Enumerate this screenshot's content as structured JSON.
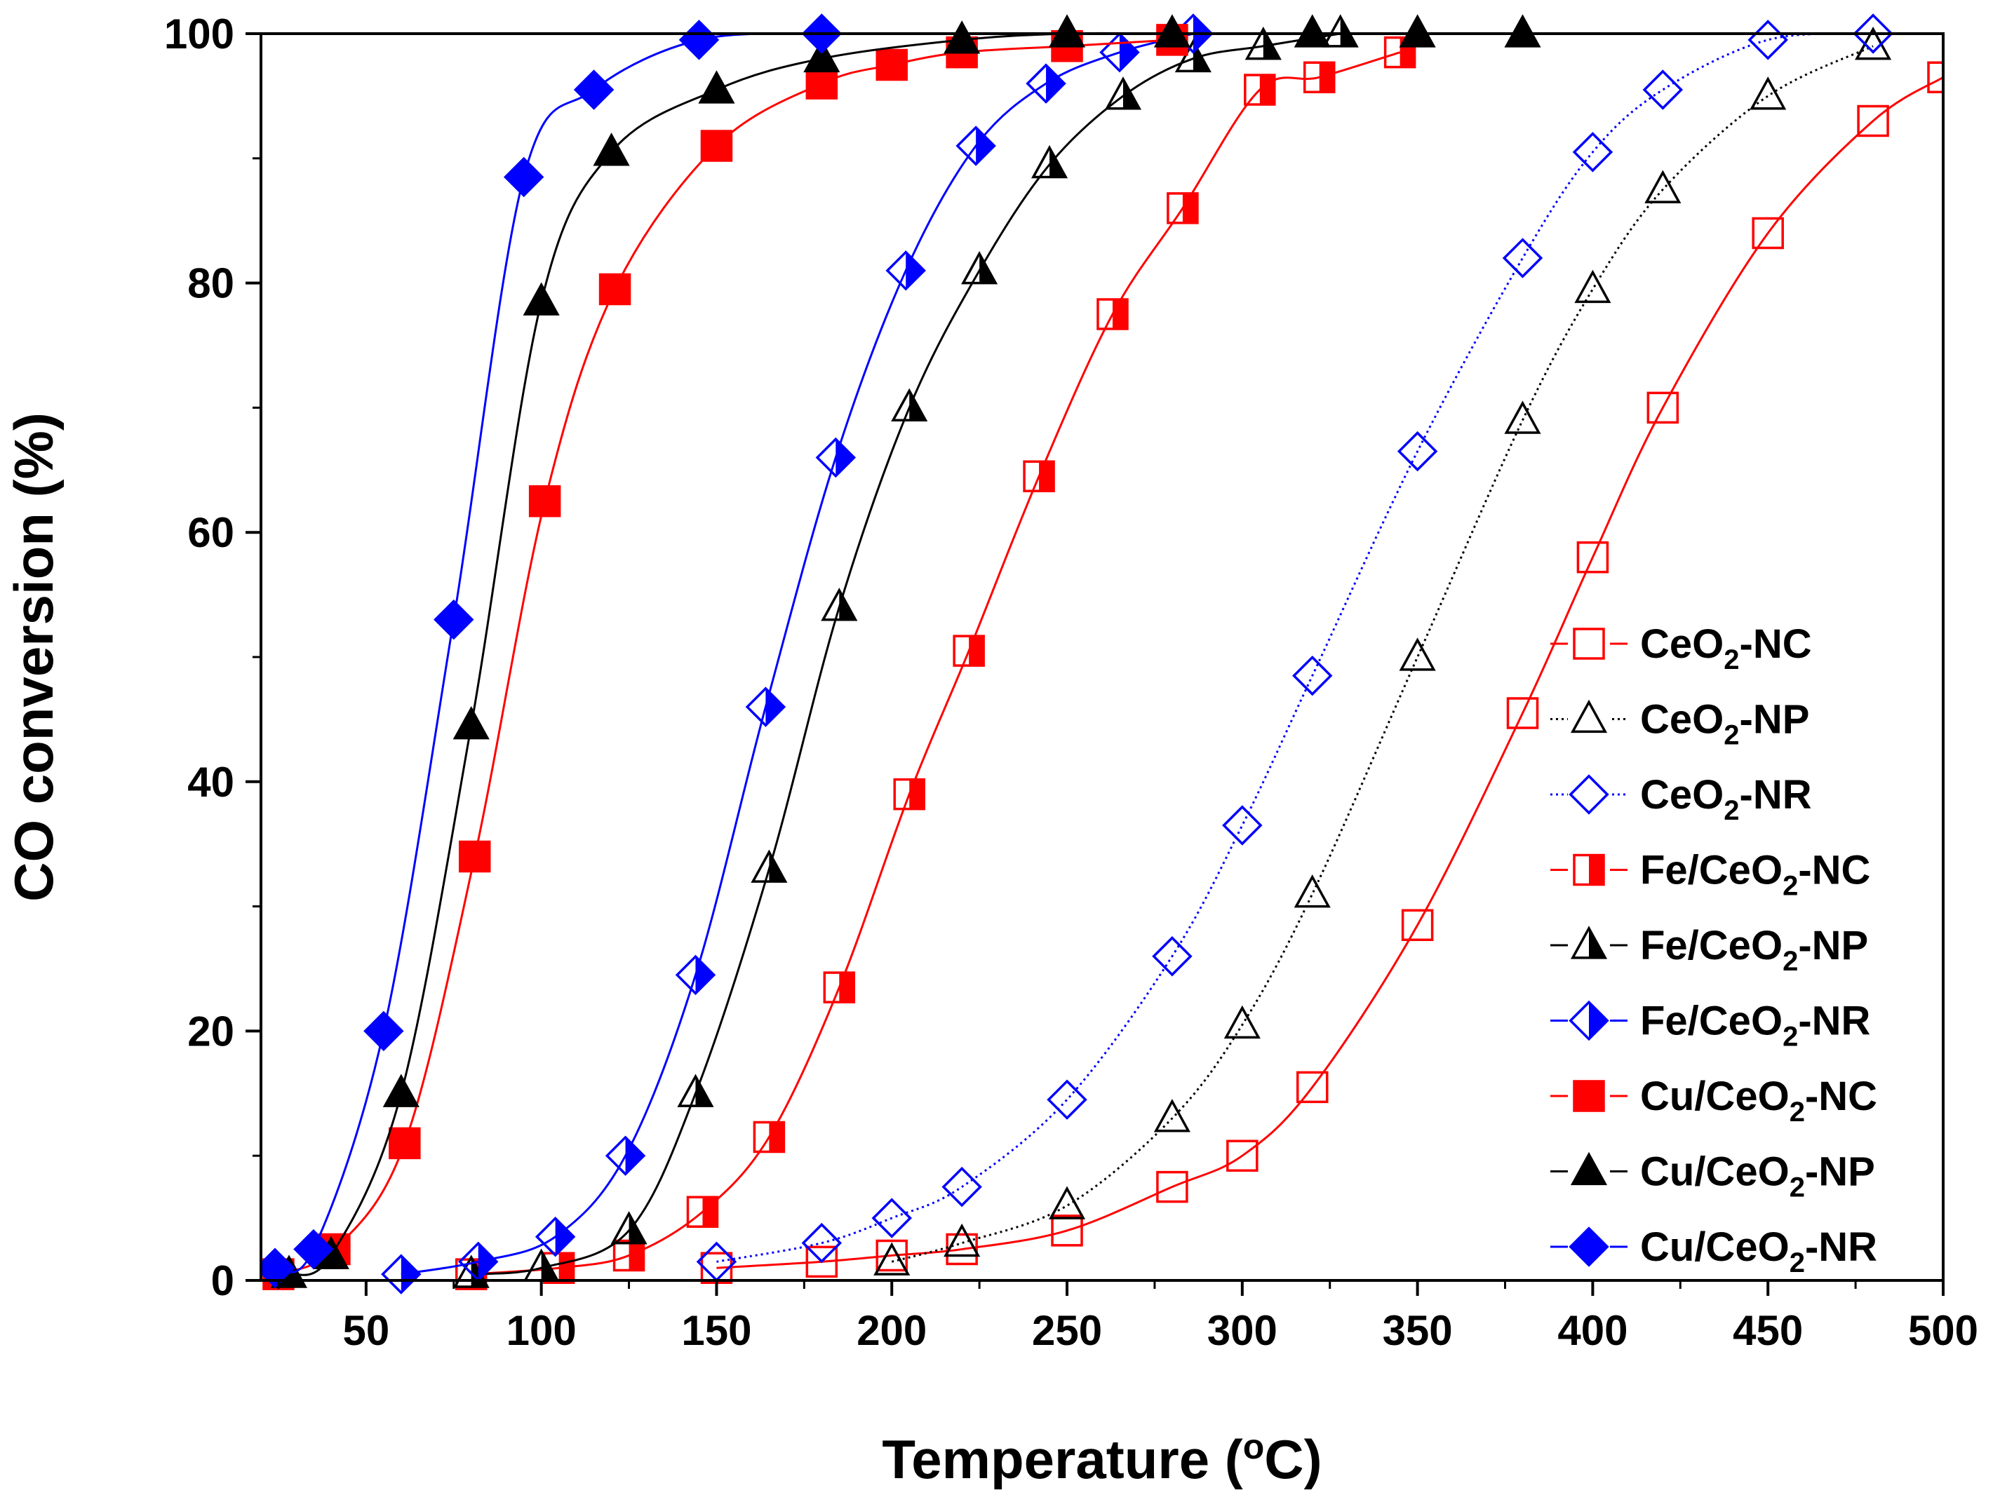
{
  "chart_data": {
    "type": "line",
    "title": "",
    "xlabel": "Temperature (",
    "xlabel_sup": "o",
    "xlabel_end": "C)",
    "ylabel": "CO conversion (%)",
    "xlim": [
      20,
      500
    ],
    "ylim": [
      0,
      100
    ],
    "xticks": [
      50,
      100,
      150,
      200,
      250,
      300,
      350,
      400,
      450,
      500
    ],
    "yticks": [
      0,
      20,
      40,
      60,
      80,
      100
    ],
    "xtick_labels": [
      "50",
      "100",
      "150",
      "200",
      "250",
      "300",
      "350",
      "400",
      "450",
      "500"
    ],
    "ytick_labels": [
      "0",
      "20",
      "40",
      "60",
      "80",
      "100"
    ],
    "grid": false,
    "legend_position": "right",
    "series": [
      {
        "name": "CeO2-NC",
        "label_pre": "CeO",
        "label_sub": "2",
        "label_post": "-NC",
        "color": "#ff0000",
        "marker": "square",
        "fill": "none",
        "dash": "solid",
        "x": [
          150,
          180,
          200,
          220,
          250,
          280,
          300,
          320,
          350,
          380,
          400,
          420,
          450,
          480,
          500
        ],
        "y": [
          1.0,
          1.5,
          2.0,
          2.5,
          4.0,
          7.5,
          10.0,
          15.5,
          28.5,
          45.5,
          58.0,
          70.0,
          84.0,
          93.0,
          96.5
        ]
      },
      {
        "name": "CeO2-NP",
        "label_pre": "CeO",
        "label_sub": "2",
        "label_post": "-NP",
        "color": "#000000",
        "marker": "triangle",
        "fill": "none",
        "dash": "dotted",
        "x": [
          200,
          220,
          250,
          280,
          300,
          320,
          350,
          380,
          400,
          420,
          450,
          480
        ],
        "y": [
          1.5,
          3.0,
          6.0,
          13.0,
          20.5,
          31.0,
          50.0,
          69.0,
          79.5,
          87.5,
          95.0,
          99.0
        ]
      },
      {
        "name": "CeO2-NR",
        "label_pre": "CeO",
        "label_sub": "2",
        "label_post": "-NR",
        "color": "#0000ff",
        "marker": "diamond",
        "fill": "none",
        "dash": "dotted",
        "x": [
          150,
          180,
          200,
          220,
          250,
          280,
          300,
          320,
          350,
          380,
          400,
          420,
          450,
          480
        ],
        "y": [
          1.5,
          3.0,
          5.0,
          7.5,
          14.5,
          26.0,
          36.5,
          48.5,
          66.5,
          82.0,
          90.5,
          95.5,
          99.5,
          100
        ]
      },
      {
        "name": "Fe/CeO2-NC",
        "label_pre": "Fe/CeO",
        "label_sub": "2",
        "label_post": "-NC",
        "color": "#ff0000",
        "marker": "square",
        "fill": "half",
        "dash": "solid",
        "x": [
          80,
          105,
          125,
          146,
          165,
          185,
          205,
          222,
          242,
          263,
          283,
          305,
          322,
          345
        ],
        "y": [
          0.5,
          1.0,
          2.0,
          5.5,
          11.5,
          23.5,
          39.0,
          50.5,
          64.5,
          77.5,
          86.0,
          95.5,
          96.5,
          98.5
        ]
      },
      {
        "name": "Fe/CeO2-NP",
        "label_pre": "Fe/CeO",
        "label_sub": "2",
        "label_post": "-NP",
        "color": "#000000",
        "marker": "triangle",
        "fill": "half",
        "dash": "solid",
        "x": [
          80,
          100,
          125,
          144,
          165,
          185,
          205,
          225,
          245,
          266,
          286,
          306,
          328
        ],
        "y": [
          0.5,
          1.0,
          4.0,
          15.0,
          33.0,
          54.0,
          70.0,
          81.0,
          89.5,
          95.0,
          98.0,
          99.0,
          100
        ]
      },
      {
        "name": "Fe/CeO2-NR",
        "label_pre": "Fe/CeO",
        "label_sub": "2",
        "label_post": "-NR",
        "color": "#0000ff",
        "marker": "diamond",
        "fill": "half",
        "dash": "solid",
        "x": [
          60,
          82,
          104,
          124,
          144,
          164,
          184,
          204,
          224,
          244,
          265,
          286
        ],
        "y": [
          0.5,
          1.5,
          3.5,
          10.0,
          24.5,
          46.0,
          66.0,
          81.0,
          91.0,
          96.0,
          98.5,
          100
        ]
      },
      {
        "name": "Cu/CeO2-NC",
        "label_pre": "Cu/CeO",
        "label_sub": "2",
        "label_post": "-NC",
        "color": "#ff0000",
        "marker": "square",
        "fill": "full",
        "dash": "solid",
        "x": [
          25,
          41,
          61,
          81,
          101,
          121,
          150,
          180,
          200,
          220,
          250,
          280
        ],
        "y": [
          0.5,
          2.5,
          11.0,
          34.0,
          62.5,
          79.5,
          91.0,
          96.0,
          97.5,
          98.5,
          99.0,
          99.5
        ]
      },
      {
        "name": "Cu/CeO2-NP",
        "label_pre": "Cu/CeO",
        "label_sub": "2",
        "label_post": "-NP",
        "color": "#000000",
        "marker": "triangle",
        "fill": "full",
        "dash": "solid",
        "x": [
          28,
          40,
          60,
          80,
          100,
          120,
          150,
          180,
          220,
          250,
          280,
          320,
          350,
          380
        ],
        "y": [
          0.5,
          2.0,
          15.0,
          44.5,
          78.5,
          90.5,
          95.5,
          98.0,
          99.5,
          100,
          100,
          100,
          100,
          100
        ]
      },
      {
        "name": "Cu/CeO2-NR",
        "label_pre": "Cu/CeO",
        "label_sub": "2",
        "label_post": "-NR",
        "color": "#0000ff",
        "marker": "diamond",
        "fill": "full",
        "dash": "solid",
        "x": [
          24,
          35,
          55,
          75,
          95,
          115,
          145,
          180
        ],
        "y": [
          1.0,
          2.5,
          20.0,
          53.0,
          88.5,
          95.5,
          99.5,
          100
        ]
      }
    ]
  }
}
